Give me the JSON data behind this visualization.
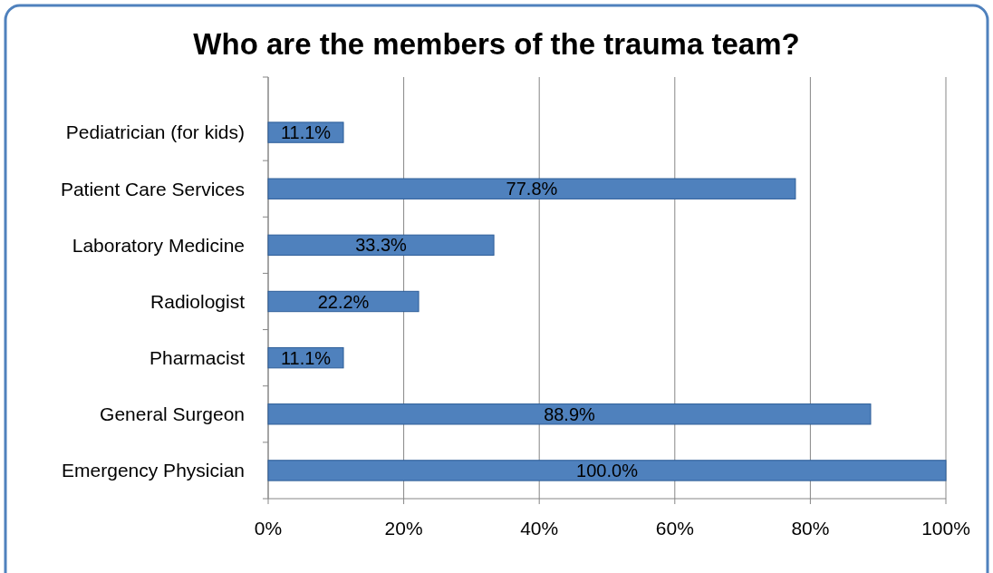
{
  "chart_data": {
    "type": "bar",
    "orientation": "horizontal",
    "title": "Who are the members of the trauma team?",
    "categories": [
      "Pediatrician (for kids)",
      "Patient Care Services",
      "Laboratory Medicine",
      "Radiologist",
      "Pharmacist",
      "General Surgeon",
      "Emergency Physician"
    ],
    "values": [
      11.1,
      77.8,
      33.3,
      22.2,
      11.1,
      88.9,
      100.0
    ],
    "value_labels": [
      "11.1%",
      "77.8%",
      "33.3%",
      "22.2%",
      "11.1%",
      "88.9%",
      "100.0%"
    ],
    "color": "#4f81bd",
    "xlim": [
      0,
      100
    ],
    "xticks": [
      {
        "value": 0,
        "label": "0%"
      },
      {
        "value": 20,
        "label": "20%"
      },
      {
        "value": 40,
        "label": "40%"
      },
      {
        "value": 60,
        "label": "60%"
      },
      {
        "value": 80,
        "label": "80%"
      },
      {
        "value": 100,
        "label": "100%"
      }
    ],
    "grid": "x"
  }
}
